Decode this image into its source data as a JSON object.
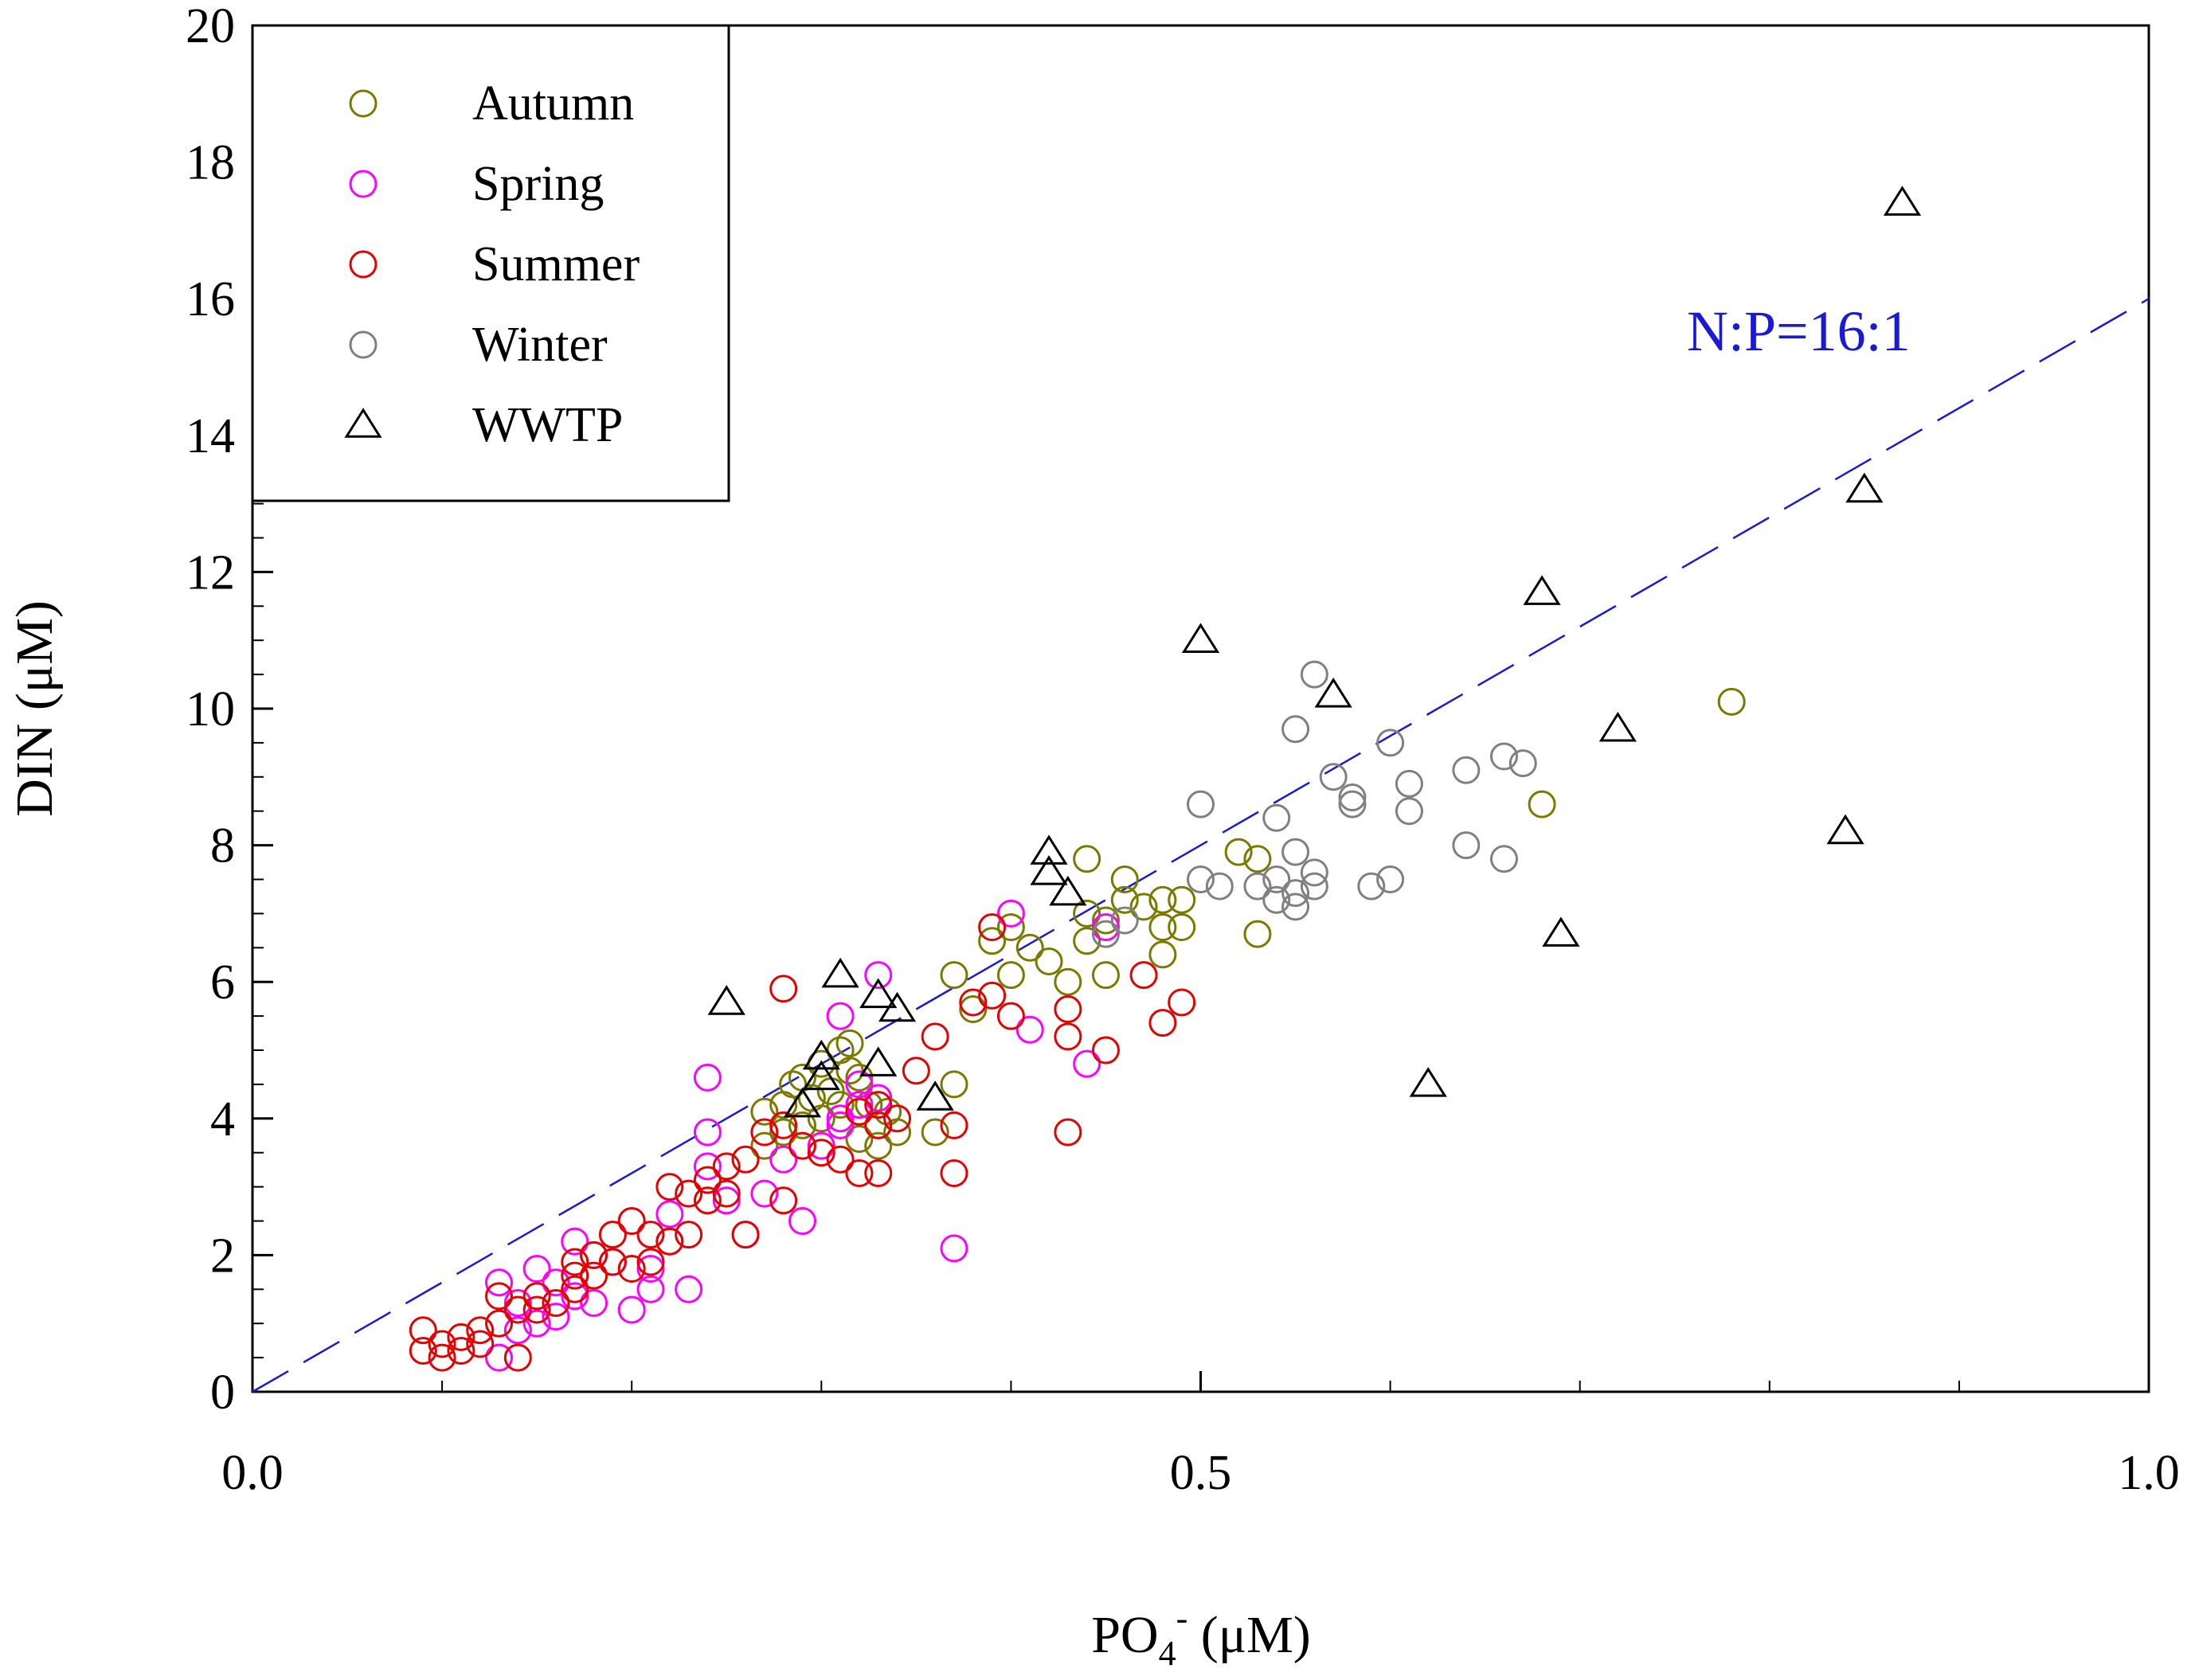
{
  "chart_data": {
    "type": "scatter",
    "title": "",
    "xlabel": {
      "main": "PO",
      "subscript": "4",
      "superscript": "-",
      "unit": " (μM)"
    },
    "ylabel": "DIN (μM)",
    "xlim": [
      0,
      1.0
    ],
    "ylim": [
      0,
      20
    ],
    "x_ticks": [
      "0.0",
      "0.5",
      "1.0"
    ],
    "x_tick_values": [
      0,
      0.5,
      1.0
    ],
    "y_ticks": [
      "0",
      "2",
      "4",
      "6",
      "8",
      "10",
      "12",
      "14",
      "16",
      "18",
      "20"
    ],
    "y_tick_values": [
      0,
      2,
      4,
      6,
      8,
      10,
      12,
      14,
      16,
      18,
      20
    ],
    "legend_position": "top-left",
    "reference_line": {
      "label": "N:P=16:1",
      "slope": 16,
      "color": "#1a1ad6",
      "style": "dashed"
    },
    "series": [
      {
        "name": "Autumn",
        "marker": "circle",
        "color": "#7a7a00",
        "points": [
          [
            0.28,
            4.2
          ],
          [
            0.285,
            4.5
          ],
          [
            0.29,
            4.6
          ],
          [
            0.295,
            4.3
          ],
          [
            0.3,
            4.8
          ],
          [
            0.305,
            4.4
          ],
          [
            0.31,
            5.0
          ],
          [
            0.315,
            4.7
          ],
          [
            0.32,
            4.6
          ],
          [
            0.325,
            4.2
          ],
          [
            0.33,
            3.9
          ],
          [
            0.335,
            4.1
          ],
          [
            0.34,
            3.8
          ],
          [
            0.28,
            3.8
          ],
          [
            0.29,
            3.9
          ],
          [
            0.3,
            4.0
          ],
          [
            0.31,
            4.2
          ],
          [
            0.32,
            3.7
          ],
          [
            0.37,
            6.1
          ],
          [
            0.38,
            5.6
          ],
          [
            0.37,
            4.5
          ],
          [
            0.39,
            6.6
          ],
          [
            0.4,
            6.8
          ],
          [
            0.4,
            6.1
          ],
          [
            0.41,
            6.5
          ],
          [
            0.42,
            6.3
          ],
          [
            0.43,
            6.0
          ],
          [
            0.44,
            6.6
          ],
          [
            0.44,
            7.0
          ],
          [
            0.45,
            6.9
          ],
          [
            0.45,
            6.1
          ],
          [
            0.44,
            7.8
          ],
          [
            0.46,
            7.5
          ],
          [
            0.46,
            7.2
          ],
          [
            0.47,
            7.1
          ],
          [
            0.48,
            7.2
          ],
          [
            0.48,
            6.8
          ],
          [
            0.48,
            6.4
          ],
          [
            0.49,
            7.2
          ],
          [
            0.49,
            6.8
          ],
          [
            0.52,
            7.9
          ],
          [
            0.53,
            7.8
          ],
          [
            0.53,
            6.7
          ],
          [
            0.68,
            8.6
          ],
          [
            0.78,
            10.1
          ],
          [
            0.36,
            3.8
          ],
          [
            0.33,
            3.6
          ],
          [
            0.315,
            5.1
          ],
          [
            0.27,
            4.1
          ],
          [
            0.27,
            3.6
          ]
        ]
      },
      {
        "name": "Spring",
        "marker": "circle",
        "color": "#ff00ff",
        "points": [
          [
            0.13,
            0.5
          ],
          [
            0.13,
            1.6
          ],
          [
            0.14,
            0.9
          ],
          [
            0.14,
            1.3
          ],
          [
            0.15,
            1.8
          ],
          [
            0.15,
            1.0
          ],
          [
            0.16,
            1.6
          ],
          [
            0.16,
            1.1
          ],
          [
            0.17,
            1.4
          ],
          [
            0.17,
            2.2
          ],
          [
            0.18,
            2.0
          ],
          [
            0.18,
            1.3
          ],
          [
            0.19,
            1.9
          ],
          [
            0.2,
            1.2
          ],
          [
            0.21,
            1.5
          ],
          [
            0.21,
            1.8
          ],
          [
            0.22,
            2.2
          ],
          [
            0.23,
            1.5
          ],
          [
            0.22,
            2.6
          ],
          [
            0.24,
            3.3
          ],
          [
            0.24,
            3.8
          ],
          [
            0.24,
            4.6
          ],
          [
            0.25,
            2.8
          ],
          [
            0.26,
            2.3
          ],
          [
            0.27,
            2.9
          ],
          [
            0.28,
            3.4
          ],
          [
            0.29,
            2.5
          ],
          [
            0.3,
            3.6
          ],
          [
            0.31,
            4.0
          ],
          [
            0.31,
            5.5
          ],
          [
            0.32,
            4.2
          ],
          [
            0.33,
            6.1
          ],
          [
            0.33,
            4.3
          ],
          [
            0.37,
            2.1
          ],
          [
            0.4,
            7.0
          ],
          [
            0.41,
            5.3
          ],
          [
            0.44,
            4.8
          ],
          [
            0.45,
            6.8
          ],
          [
            0.31,
            3.9
          ],
          [
            0.32,
            4.5
          ]
        ]
      },
      {
        "name": "Summer",
        "marker": "circle",
        "color": "#e60000",
        "points": [
          [
            0.09,
            0.6
          ],
          [
            0.09,
            0.9
          ],
          [
            0.1,
            0.7
          ],
          [
            0.1,
            0.5
          ],
          [
            0.11,
            0.6
          ],
          [
            0.11,
            0.8
          ],
          [
            0.12,
            0.7
          ],
          [
            0.12,
            0.9
          ],
          [
            0.13,
            1.0
          ],
          [
            0.13,
            1.4
          ],
          [
            0.14,
            1.2
          ],
          [
            0.14,
            0.5
          ],
          [
            0.15,
            1.4
          ],
          [
            0.15,
            1.2
          ],
          [
            0.16,
            1.3
          ],
          [
            0.17,
            1.5
          ],
          [
            0.17,
            1.7
          ],
          [
            0.17,
            1.9
          ],
          [
            0.18,
            1.7
          ],
          [
            0.18,
            2.0
          ],
          [
            0.19,
            2.3
          ],
          [
            0.19,
            1.9
          ],
          [
            0.2,
            1.8
          ],
          [
            0.2,
            2.5
          ],
          [
            0.21,
            2.3
          ],
          [
            0.21,
            1.9
          ],
          [
            0.22,
            2.2
          ],
          [
            0.22,
            3.0
          ],
          [
            0.23,
            2.9
          ],
          [
            0.23,
            2.3
          ],
          [
            0.24,
            2.8
          ],
          [
            0.24,
            3.1
          ],
          [
            0.25,
            3.3
          ],
          [
            0.25,
            2.9
          ],
          [
            0.26,
            3.4
          ],
          [
            0.26,
            2.3
          ],
          [
            0.27,
            3.8
          ],
          [
            0.28,
            3.9
          ],
          [
            0.28,
            2.8
          ],
          [
            0.28,
            5.9
          ],
          [
            0.29,
            3.6
          ],
          [
            0.3,
            3.5
          ],
          [
            0.31,
            3.4
          ],
          [
            0.32,
            3.2
          ],
          [
            0.33,
            3.2
          ],
          [
            0.33,
            3.9
          ],
          [
            0.34,
            4.0
          ],
          [
            0.35,
            4.7
          ],
          [
            0.36,
            5.2
          ],
          [
            0.37,
            3.2
          ],
          [
            0.37,
            3.9
          ],
          [
            0.38,
            5.7
          ],
          [
            0.39,
            6.8
          ],
          [
            0.39,
            5.8
          ],
          [
            0.4,
            5.5
          ],
          [
            0.43,
            5.6
          ],
          [
            0.43,
            5.2
          ],
          [
            0.43,
            3.8
          ],
          [
            0.45,
            5.0
          ],
          [
            0.47,
            6.1
          ],
          [
            0.48,
            5.4
          ],
          [
            0.49,
            5.7
          ],
          [
            0.32,
            4.1
          ],
          [
            0.33,
            4.2
          ]
        ]
      },
      {
        "name": "Winter",
        "marker": "circle",
        "color": "#808080",
        "points": [
          [
            0.45,
            6.7
          ],
          [
            0.46,
            6.9
          ],
          [
            0.5,
            8.6
          ],
          [
            0.5,
            7.5
          ],
          [
            0.51,
            7.4
          ],
          [
            0.53,
            7.4
          ],
          [
            0.54,
            8.4
          ],
          [
            0.54,
            7.5
          ],
          [
            0.55,
            7.9
          ],
          [
            0.55,
            9.7
          ],
          [
            0.55,
            7.1
          ],
          [
            0.55,
            7.3
          ],
          [
            0.56,
            7.4
          ],
          [
            0.56,
            7.6
          ],
          [
            0.56,
            10.5
          ],
          [
            0.57,
            9.0
          ],
          [
            0.58,
            8.6
          ],
          [
            0.58,
            8.7
          ],
          [
            0.59,
            7.4
          ],
          [
            0.6,
            9.5
          ],
          [
            0.6,
            7.5
          ],
          [
            0.61,
            8.9
          ],
          [
            0.61,
            8.5
          ],
          [
            0.64,
            9.1
          ],
          [
            0.64,
            8.0
          ],
          [
            0.66,
            9.3
          ],
          [
            0.66,
            7.8
          ],
          [
            0.67,
            9.2
          ],
          [
            0.54,
            7.2
          ]
        ]
      },
      {
        "name": "WWTP",
        "marker": "triangle",
        "color": "#000000",
        "points": [
          [
            0.25,
            5.7
          ],
          [
            0.29,
            4.2
          ],
          [
            0.3,
            4.6
          ],
          [
            0.3,
            4.9
          ],
          [
            0.31,
            6.1
          ],
          [
            0.33,
            5.8
          ],
          [
            0.33,
            4.8
          ],
          [
            0.34,
            5.6
          ],
          [
            0.36,
            4.3
          ],
          [
            0.42,
            7.9
          ],
          [
            0.42,
            7.6
          ],
          [
            0.43,
            7.3
          ],
          [
            0.5,
            11.0
          ],
          [
            0.57,
            10.2
          ],
          [
            0.62,
            4.5
          ],
          [
            0.68,
            11.7
          ],
          [
            0.69,
            6.7
          ],
          [
            0.72,
            9.7
          ],
          [
            0.84,
            8.2
          ],
          [
            0.85,
            13.2
          ],
          [
            0.87,
            17.4
          ]
        ]
      }
    ]
  }
}
